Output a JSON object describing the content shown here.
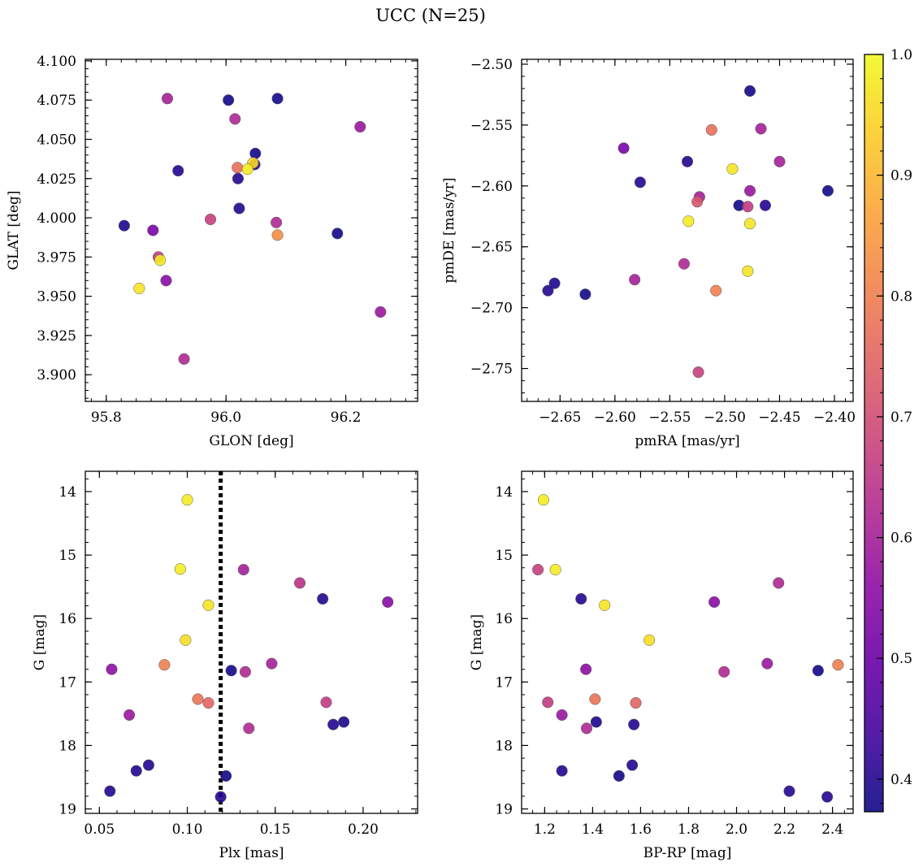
{
  "figure": {
    "title": "UCC (N=25)"
  },
  "chart_data": [
    {
      "type": "scatter",
      "xlabel": "GLON [deg]",
      "ylabel": "GLAT [deg]",
      "xlim": [
        95.765,
        96.32
      ],
      "ylim": [
        3.883,
        4.101
      ],
      "x_ticks": [
        95.8,
        96.0,
        96.2
      ],
      "x_tick_labels": [
        "95.8",
        "96.0",
        "96.2"
      ],
      "y_ticks": [
        3.9,
        3.925,
        3.95,
        3.975,
        4.0,
        4.025,
        4.05,
        4.075,
        4.1
      ],
      "y_tick_labels": [
        "3.900",
        "3.925",
        "3.950",
        "3.975",
        "4.000",
        "4.025",
        "4.050",
        "4.075",
        "4.100"
      ],
      "x_minor_step": 0.025,
      "y_minor_step": 0.005,
      "points": [
        {
          "x": 95.902,
          "y": 4.076,
          "c": 0.6
        },
        {
          "x": 96.004,
          "y": 4.075,
          "c": 0.38
        },
        {
          "x": 96.086,
          "y": 4.076,
          "c": 0.38
        },
        {
          "x": 96.015,
          "y": 4.063,
          "c": 0.62
        },
        {
          "x": 96.224,
          "y": 4.058,
          "c": 0.58
        },
        {
          "x": 96.049,
          "y": 4.041,
          "c": 0.38
        },
        {
          "x": 96.048,
          "y": 4.034,
          "c": 0.4
        },
        {
          "x": 96.045,
          "y": 4.035,
          "c": 0.95
        },
        {
          "x": 96.019,
          "y": 4.032,
          "c": 0.77
        },
        {
          "x": 96.036,
          "y": 4.031,
          "c": 0.98
        },
        {
          "x": 95.92,
          "y": 4.03,
          "c": 0.4
        },
        {
          "x": 96.02,
          "y": 4.025,
          "c": 0.4
        },
        {
          "x": 96.022,
          "y": 4.006,
          "c": 0.4
        },
        {
          "x": 95.974,
          "y": 3.999,
          "c": 0.67
        },
        {
          "x": 96.084,
          "y": 3.997,
          "c": 0.62
        },
        {
          "x": 95.83,
          "y": 3.995,
          "c": 0.39
        },
        {
          "x": 95.878,
          "y": 3.992,
          "c": 0.52
        },
        {
          "x": 96.086,
          "y": 3.989,
          "c": 0.83
        },
        {
          "x": 96.186,
          "y": 3.99,
          "c": 0.38
        },
        {
          "x": 95.887,
          "y": 3.975,
          "c": 0.66
        },
        {
          "x": 95.89,
          "y": 3.973,
          "c": 0.98
        },
        {
          "x": 95.9,
          "y": 3.96,
          "c": 0.55
        },
        {
          "x": 95.855,
          "y": 3.955,
          "c": 0.97
        },
        {
          "x": 96.258,
          "y": 3.94,
          "c": 0.58
        },
        {
          "x": 95.93,
          "y": 3.91,
          "c": 0.62
        }
      ]
    },
    {
      "type": "scatter",
      "xlabel": "pmRA [mas/yr]",
      "ylabel": "pmDE [mas/yr]",
      "xlim": [
        -2.685,
        -2.383
      ],
      "ylim": [
        -2.777,
        -2.496
      ],
      "x_ticks": [
        -2.65,
        -2.6,
        -2.55,
        -2.5,
        -2.45,
        -2.4
      ],
      "x_tick_labels": [
        "−2.65",
        "−2.60",
        "−2.55",
        "−2.50",
        "−2.45",
        "−2.40"
      ],
      "y_ticks": [
        -2.75,
        -2.7,
        -2.65,
        -2.6,
        -2.55,
        -2.5
      ],
      "y_tick_labels": [
        "−2.75",
        "−2.70",
        "−2.65",
        "−2.60",
        "−2.55",
        "−2.50"
      ],
      "x_minor_step": 0.01,
      "y_minor_step": 0.01,
      "points": [
        {
          "x": -2.477,
          "y": -2.522,
          "c": 0.38
        },
        {
          "x": -2.512,
          "y": -2.554,
          "c": 0.77
        },
        {
          "x": -2.467,
          "y": -2.553,
          "c": 0.6
        },
        {
          "x": -2.592,
          "y": -2.569,
          "c": 0.52
        },
        {
          "x": -2.534,
          "y": -2.58,
          "c": 0.4
        },
        {
          "x": -2.45,
          "y": -2.58,
          "c": 0.6
        },
        {
          "x": -2.493,
          "y": -2.586,
          "c": 0.97
        },
        {
          "x": -2.577,
          "y": -2.597,
          "c": 0.4
        },
        {
          "x": -2.477,
          "y": -2.604,
          "c": 0.58
        },
        {
          "x": -2.406,
          "y": -2.604,
          "c": 0.38
        },
        {
          "x": -2.523,
          "y": -2.609,
          "c": 0.6
        },
        {
          "x": -2.525,
          "y": -2.613,
          "c": 0.72
        },
        {
          "x": -2.487,
          "y": -2.616,
          "c": 0.38
        },
        {
          "x": -2.479,
          "y": -2.617,
          "c": 0.66
        },
        {
          "x": -2.463,
          "y": -2.616,
          "c": 0.4
        },
        {
          "x": -2.533,
          "y": -2.629,
          "c": 0.98
        },
        {
          "x": -2.477,
          "y": -2.631,
          "c": 0.97
        },
        {
          "x": -2.537,
          "y": -2.664,
          "c": 0.62
        },
        {
          "x": -2.479,
          "y": -2.67,
          "c": 0.97
        },
        {
          "x": -2.582,
          "y": -2.677,
          "c": 0.6
        },
        {
          "x": -2.655,
          "y": -2.68,
          "c": 0.39
        },
        {
          "x": -2.508,
          "y": -2.686,
          "c": 0.8
        },
        {
          "x": -2.661,
          "y": -2.686,
          "c": 0.4
        },
        {
          "x": -2.627,
          "y": -2.689,
          "c": 0.38
        },
        {
          "x": -2.524,
          "y": -2.753,
          "c": 0.67
        }
      ]
    },
    {
      "type": "scatter",
      "xlabel": "Plx [mas]",
      "ylabel": "G [mag]",
      "xlim": [
        0.042,
        0.231
      ],
      "ylim": [
        19.07,
        13.68
      ],
      "invert_y": true,
      "x_ticks": [
        0.05,
        0.1,
        0.15,
        0.2
      ],
      "x_tick_labels": [
        "0.05",
        "0.10",
        "0.15",
        "0.20"
      ],
      "y_ticks": [
        14,
        15,
        16,
        17,
        18,
        19
      ],
      "y_tick_labels": [
        "14",
        "15",
        "16",
        "17",
        "18",
        "19"
      ],
      "x_minor_step": 0.01,
      "y_minor_step": 0.2,
      "vline": 0.119,
      "points": [
        {
          "x": 0.1,
          "y": 14.13,
          "c": 0.98
        },
        {
          "x": 0.096,
          "y": 15.22,
          "c": 0.98
        },
        {
          "x": 0.132,
          "y": 15.23,
          "c": 0.6
        },
        {
          "x": 0.164,
          "y": 15.44,
          "c": 0.64
        },
        {
          "x": 0.177,
          "y": 15.69,
          "c": 0.4
        },
        {
          "x": 0.214,
          "y": 15.74,
          "c": 0.55
        },
        {
          "x": 0.112,
          "y": 15.79,
          "c": 0.97
        },
        {
          "x": 0.099,
          "y": 16.34,
          "c": 0.96
        },
        {
          "x": 0.148,
          "y": 16.71,
          "c": 0.6
        },
        {
          "x": 0.087,
          "y": 16.73,
          "c": 0.8
        },
        {
          "x": 0.057,
          "y": 16.8,
          "c": 0.56
        },
        {
          "x": 0.125,
          "y": 16.82,
          "c": 0.38
        },
        {
          "x": 0.133,
          "y": 16.84,
          "c": 0.62
        },
        {
          "x": 0.106,
          "y": 17.27,
          "c": 0.78
        },
        {
          "x": 0.112,
          "y": 17.33,
          "c": 0.75
        },
        {
          "x": 0.179,
          "y": 17.32,
          "c": 0.66
        },
        {
          "x": 0.067,
          "y": 17.52,
          "c": 0.58
        },
        {
          "x": 0.189,
          "y": 17.63,
          "c": 0.39
        },
        {
          "x": 0.183,
          "y": 17.67,
          "c": 0.4
        },
        {
          "x": 0.135,
          "y": 17.73,
          "c": 0.62
        },
        {
          "x": 0.078,
          "y": 18.31,
          "c": 0.4
        },
        {
          "x": 0.071,
          "y": 18.4,
          "c": 0.4
        },
        {
          "x": 0.122,
          "y": 18.48,
          "c": 0.38
        },
        {
          "x": 0.056,
          "y": 18.72,
          "c": 0.4
        },
        {
          "x": 0.119,
          "y": 18.81,
          "c": 0.4
        }
      ]
    },
    {
      "type": "scatter",
      "xlabel": "BP-RP [mag]",
      "ylabel": "G [mag]",
      "xlim": [
        1.104,
        2.486
      ],
      "ylim": [
        19.07,
        13.68
      ],
      "invert_y": true,
      "x_ticks": [
        1.2,
        1.4,
        1.6,
        1.8,
        2.0,
        2.2,
        2.4
      ],
      "x_tick_labels": [
        "1.2",
        "1.4",
        "1.6",
        "1.8",
        "2.0",
        "2.2",
        "2.4"
      ],
      "y_ticks": [
        14,
        15,
        16,
        17,
        18,
        19
      ],
      "y_tick_labels": [
        "14",
        "15",
        "16",
        "17",
        "18",
        "19"
      ],
      "x_minor_step": 0.05,
      "y_minor_step": 0.2,
      "points": [
        {
          "x": 1.195,
          "y": 14.13,
          "c": 0.98
        },
        {
          "x": 1.172,
          "y": 15.23,
          "c": 0.67
        },
        {
          "x": 1.245,
          "y": 15.23,
          "c": 0.98
        },
        {
          "x": 2.175,
          "y": 15.44,
          "c": 0.62
        },
        {
          "x": 1.352,
          "y": 15.69,
          "c": 0.4
        },
        {
          "x": 1.45,
          "y": 15.79,
          "c": 0.97
        },
        {
          "x": 1.907,
          "y": 15.74,
          "c": 0.55
        },
        {
          "x": 1.636,
          "y": 16.34,
          "c": 0.96
        },
        {
          "x": 2.128,
          "y": 16.71,
          "c": 0.58
        },
        {
          "x": 2.423,
          "y": 16.73,
          "c": 0.8
        },
        {
          "x": 1.372,
          "y": 16.8,
          "c": 0.56
        },
        {
          "x": 1.948,
          "y": 16.84,
          "c": 0.62
        },
        {
          "x": 2.34,
          "y": 16.82,
          "c": 0.38
        },
        {
          "x": 1.41,
          "y": 17.27,
          "c": 0.78
        },
        {
          "x": 1.213,
          "y": 17.32,
          "c": 0.66
        },
        {
          "x": 1.58,
          "y": 17.33,
          "c": 0.75
        },
        {
          "x": 1.272,
          "y": 17.52,
          "c": 0.58
        },
        {
          "x": 1.415,
          "y": 17.63,
          "c": 0.39
        },
        {
          "x": 1.572,
          "y": 17.67,
          "c": 0.4
        },
        {
          "x": 1.375,
          "y": 17.73,
          "c": 0.62
        },
        {
          "x": 1.565,
          "y": 18.31,
          "c": 0.4
        },
        {
          "x": 1.272,
          "y": 18.4,
          "c": 0.4
        },
        {
          "x": 1.51,
          "y": 18.48,
          "c": 0.38
        },
        {
          "x": 2.22,
          "y": 18.72,
          "c": 0.4
        },
        {
          "x": 2.378,
          "y": 18.81,
          "c": 0.4
        }
      ]
    }
  ],
  "colorbar": {
    "colormap": "plasma",
    "range": [
      0.373,
      1.0
    ],
    "ticks": [
      0.4,
      0.5,
      0.6,
      0.7,
      0.8,
      0.9,
      1.0
    ],
    "tick_labels": [
      "0.4",
      "0.5",
      "0.6",
      "0.7",
      "0.8",
      "0.9",
      "1.0"
    ],
    "minor_step": 0.02
  },
  "style": {
    "marker_edge": "#555555",
    "vline_color": "#000000"
  }
}
